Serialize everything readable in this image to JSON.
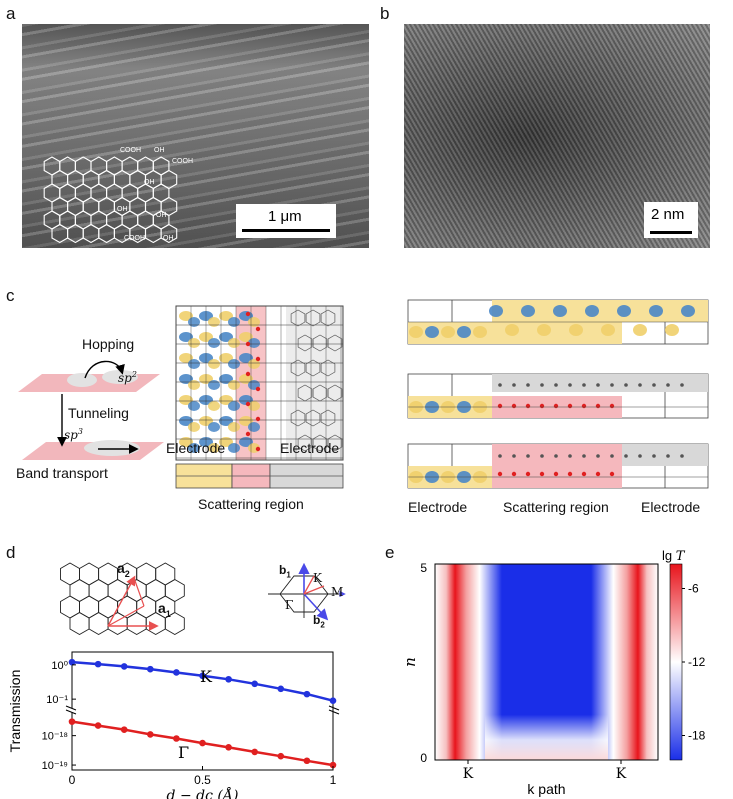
{
  "panels": {
    "a": "a",
    "b": "b",
    "c": "c",
    "d": "d",
    "e": "e"
  },
  "panel_a": {
    "scale_label": "1 μm",
    "cooh_labels": [
      "COOH",
      "COOH",
      "COOH",
      "COOH"
    ],
    "oh_labels": [
      "OH",
      "OH",
      "OH",
      "OH",
      "OH"
    ]
  },
  "panel_b": {
    "scale_label": "2 nm"
  },
  "panel_c": {
    "hopping": "Hopping",
    "tunneling": "Tunneling",
    "band_transport": "Band transport",
    "sp2": "sp",
    "sp2_sup": "2",
    "sp3": "sp",
    "sp3_sup": "3",
    "electrode_left": "Electrode",
    "electrode_right": "Electrode",
    "scattering_region": "Scattering region",
    "right_electrode_left": "Electrode",
    "right_scattering_region": "Scattering region",
    "right_electrode_right": "Electrode"
  },
  "panel_d": {
    "a1": "a",
    "a1_sub": "1",
    "a2": "a",
    "a2_sub": "2",
    "b1": "b",
    "b1_sub": "1",
    "b2": "b",
    "b2_sub": "2",
    "K_label": "K",
    "M_label": "M",
    "Gamma_label": "Γ"
  },
  "chart_data": [
    {
      "type": "line",
      "ylabel": "Transmission",
      "xlabel": "d − dc (Å)",
      "x_ticks": [
        "0",
        "0.5",
        "1"
      ],
      "y_ticks_upper": [
        "10⁰",
        "10⁻¹"
      ],
      "y_ticks_lower": [
        "10⁻¹⁸",
        "10⁻¹⁹"
      ],
      "xlim": [
        0,
        1
      ],
      "broken_y_axis": true,
      "series": [
        {
          "name": "K",
          "color": "#2233dd",
          "x": [
            0,
            0.1,
            0.2,
            0.3,
            0.4,
            0.5,
            0.6,
            0.7,
            0.8,
            0.9,
            1.0
          ],
          "values": [
            1.2,
            1.05,
            0.9,
            0.75,
            0.6,
            0.48,
            0.38,
            0.28,
            0.2,
            0.14,
            0.09
          ]
        },
        {
          "name": "Γ",
          "color": "#e02020",
          "x": [
            0,
            0.1,
            0.2,
            0.3,
            0.4,
            0.5,
            0.6,
            0.7,
            0.8,
            0.9,
            1.0
          ],
          "values": [
            3e-18,
            2.2e-18,
            1.6e-18,
            1.1e-18,
            8e-19,
            5.6e-19,
            4e-19,
            2.8e-19,
            2e-19,
            1.4e-19,
            1e-19
          ]
        }
      ]
    },
    {
      "type": "heatmap",
      "xlabel": "k path",
      "ylabel": "n",
      "x_ticks": [
        "K",
        "K"
      ],
      "y_ticks": [
        "0",
        "5"
      ],
      "ylim": [
        0,
        5
      ],
      "colorbar_label": "lg",
      "colorbar_label_var": "T",
      "colorbar_ticks": [
        "-6",
        "-12",
        "-18"
      ],
      "colorbar_range": [
        -20,
        -4
      ],
      "colors": {
        "high": "#e8141c",
        "mid": "#ffffff",
        "low": "#1a2ee8"
      }
    }
  ]
}
